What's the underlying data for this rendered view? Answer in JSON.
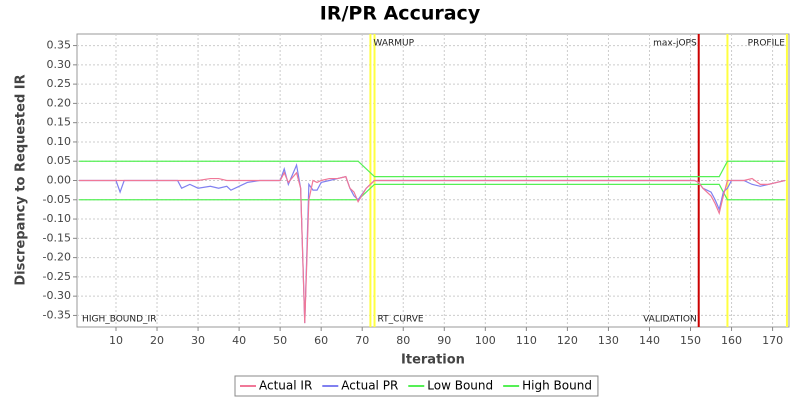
{
  "chart_data": {
    "type": "line",
    "title": "IR/PR Accuracy",
    "x_label": "Iteration",
    "y_label": "Discrepancy to Requested IR",
    "x": [
      1,
      10,
      11,
      12,
      25,
      26,
      28,
      30,
      33,
      35,
      37,
      38,
      40,
      42,
      45,
      50,
      51,
      52,
      54,
      55,
      56,
      57,
      58,
      59,
      60,
      62,
      64,
      66,
      67,
      68,
      69,
      71,
      73,
      80,
      100,
      120,
      140,
      151,
      152,
      153,
      155,
      156,
      157,
      158,
      159,
      160,
      161,
      163,
      165,
      167,
      169,
      171,
      173
    ],
    "series": [
      {
        "name": "Actual IR",
        "color": "#f07898",
        "values": [
          0,
          0,
          0,
          0,
          0,
          0,
          0,
          0,
          0.005,
          0.005,
          0,
          0,
          0,
          0,
          0,
          0,
          0.02,
          -0.005,
          0.02,
          -0.02,
          -0.37,
          -0.05,
          0,
          -0.005,
          0,
          0.005,
          0.005,
          0.01,
          -0.02,
          -0.03,
          -0.055,
          -0.02,
          0,
          0,
          0,
          0,
          0,
          0,
          -0.005,
          -0.02,
          -0.04,
          -0.06,
          -0.085,
          -0.04,
          0,
          0,
          0,
          0,
          0.005,
          -0.01,
          -0.01,
          -0.005,
          0
        ]
      },
      {
        "name": "Actual PR",
        "color": "#8080f0",
        "values": [
          0,
          0,
          -0.03,
          0,
          0,
          -0.02,
          -0.01,
          -0.02,
          -0.015,
          -0.02,
          -0.015,
          -0.025,
          -0.015,
          -0.005,
          0,
          0,
          0.03,
          -0.01,
          0.04,
          -0.02,
          -0.37,
          -0.01,
          -0.025,
          -0.025,
          -0.005,
          0,
          0.005,
          0.01,
          -0.02,
          -0.04,
          -0.05,
          -0.02,
          0,
          0,
          0,
          0,
          0,
          0,
          -0.005,
          -0.02,
          -0.03,
          -0.05,
          -0.075,
          -0.03,
          -0.02,
          0,
          0,
          0,
          -0.01,
          -0.015,
          -0.01,
          -0.005,
          0
        ]
      },
      {
        "name": "Low Bound",
        "color": "#55f055",
        "values": [
          -0.05,
          -0.05,
          -0.05,
          -0.05,
          -0.05,
          -0.05,
          -0.05,
          -0.05,
          -0.05,
          -0.05,
          -0.05,
          -0.05,
          -0.05,
          -0.05,
          -0.05,
          -0.05,
          -0.05,
          -0.05,
          -0.05,
          -0.05,
          -0.05,
          -0.05,
          -0.05,
          -0.05,
          -0.05,
          -0.05,
          -0.05,
          -0.05,
          -0.05,
          -0.05,
          -0.05,
          -0.03,
          -0.01,
          -0.01,
          -0.01,
          -0.01,
          -0.01,
          -0.01,
          -0.01,
          -0.01,
          -0.01,
          -0.01,
          -0.01,
          -0.03,
          -0.05,
          -0.05,
          -0.05,
          -0.05,
          -0.05,
          -0.05,
          -0.05,
          -0.05,
          -0.05
        ]
      },
      {
        "name": "High Bound",
        "color": "#55f055",
        "values": [
          0.05,
          0.05,
          0.05,
          0.05,
          0.05,
          0.05,
          0.05,
          0.05,
          0.05,
          0.05,
          0.05,
          0.05,
          0.05,
          0.05,
          0.05,
          0.05,
          0.05,
          0.05,
          0.05,
          0.05,
          0.05,
          0.05,
          0.05,
          0.05,
          0.05,
          0.05,
          0.05,
          0.05,
          0.05,
          0.05,
          0.05,
          0.03,
          0.01,
          0.01,
          0.01,
          0.01,
          0.01,
          0.01,
          0.01,
          0.01,
          0.01,
          0.01,
          0.01,
          0.03,
          0.05,
          0.05,
          0.05,
          0.05,
          0.05,
          0.05,
          0.05,
          0.05,
          0.05
        ]
      }
    ],
    "xlim": [
      0.5,
      174
    ],
    "ylim": [
      -0.38,
      0.38
    ],
    "xticks": [
      10,
      20,
      30,
      40,
      50,
      60,
      70,
      80,
      90,
      100,
      110,
      120,
      130,
      140,
      150,
      160,
      170
    ],
    "yticks": [
      {
        "value": -0.35,
        "label": "-0.35"
      },
      {
        "value": -0.3,
        "label": "-0.30"
      },
      -0.25,
      {
        "value": -0.2,
        "label": "-0.20"
      },
      -0.15,
      {
        "value": -0.1,
        "label": "-0.10"
      },
      -0.05,
      {
        "value": 0,
        "label": "0.00"
      },
      0.05,
      {
        "value": 0.1,
        "label": "0.10"
      },
      0.15,
      {
        "value": 0.2,
        "label": "0.20"
      },
      0.25,
      {
        "value": 0.3,
        "label": "0.30"
      },
      0.35
    ],
    "grid": true,
    "marker_lines": [
      {
        "x": 72,
        "color": "#ffff40"
      },
      {
        "x": 73,
        "color": "#ffff40"
      },
      {
        "x": 152,
        "color": "#cc0000"
      },
      {
        "x": 159,
        "color": "#ffff40"
      },
      {
        "x": 173.5,
        "color": "#ffff40"
      }
    ],
    "marker_labels": [
      {
        "x": 1,
        "label": "HIGH_BOUND_IR",
        "position": "bottom",
        "anchor": "start"
      },
      {
        "x": 72,
        "label": "WARMUP",
        "position": "top",
        "anchor": "start"
      },
      {
        "x": 73,
        "label": "RT_CURVE",
        "position": "bottom",
        "anchor": "start"
      },
      {
        "x": 152,
        "label": "max-jOPS",
        "position": "top",
        "anchor": "end"
      },
      {
        "x": 152,
        "label": "VALIDATION",
        "position": "bottom",
        "anchor": "end"
      },
      {
        "x": 173.5,
        "label": "PROFILE",
        "position": "top",
        "anchor": "end"
      }
    ],
    "legend": "bottom"
  }
}
